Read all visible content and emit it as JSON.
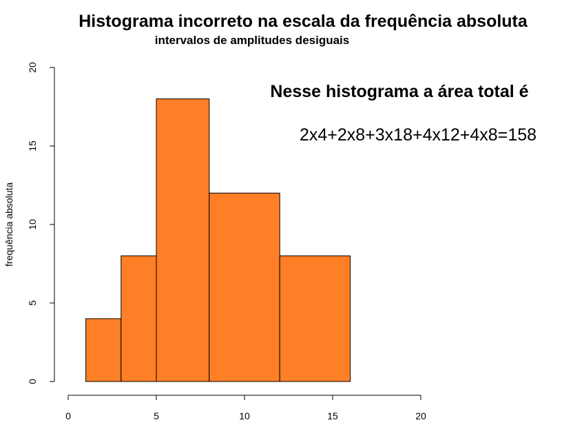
{
  "chart_data": {
    "type": "bar",
    "title": "Histograma incorreto na escala da frequência absoluta",
    "subtitle": "intervalos de amplitudes desiguais",
    "xlabel": "",
    "ylabel": "frequência absoluta",
    "xlim": [
      0,
      20
    ],
    "ylim": [
      0,
      20
    ],
    "x_ticks": [
      0,
      5,
      10,
      15,
      20
    ],
    "y_ticks": [
      0,
      5,
      10,
      15,
      20
    ],
    "bins": [
      {
        "start": 1,
        "end": 3,
        "value": 4
      },
      {
        "start": 3,
        "end": 5,
        "value": 8
      },
      {
        "start": 5,
        "end": 8,
        "value": 18
      },
      {
        "start": 8,
        "end": 12,
        "value": 12
      },
      {
        "start": 12,
        "end": 16,
        "value": 8
      }
    ],
    "bar_color": "#FF7F27",
    "border_color": "#000000",
    "grid": false,
    "annotations": [
      "Nesse histograma a área total é",
      "2x4+2x8+3x18+4x12+4x8=158"
    ]
  }
}
